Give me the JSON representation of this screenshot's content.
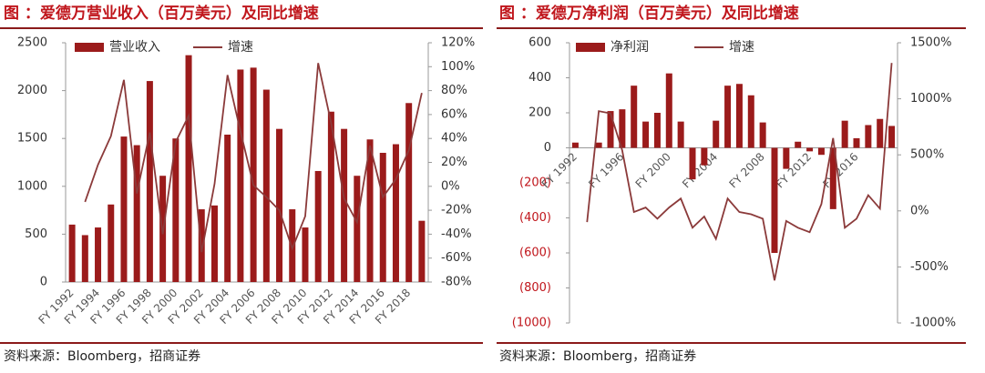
{
  "chart_data": [
    {
      "type": "bar_line",
      "title": "图 ：爱德万营业收入（百万美元）及同比增速",
      "note": "资料来源：Bloomberg，招商证券",
      "categories": [
        "FY 1992",
        null,
        "FY 1994",
        null,
        "FY 1996",
        null,
        "FY 1998",
        null,
        "FY 2000",
        null,
        "FY 2002",
        null,
        "FY 2004",
        null,
        "FY 2006",
        null,
        "FY 2008",
        null,
        "FY 2010",
        null,
        "FY 2012",
        null,
        "FY 2014",
        null,
        "FY 2016",
        null,
        "FY 2018",
        null
      ],
      "series": [
        {
          "name": "营业收入",
          "color": "#9b1b1b",
          "kind": "bar",
          "values": [
            600,
            490,
            570,
            810,
            1520,
            1430,
            2100,
            1110,
            1500,
            2370,
            760,
            800,
            1540,
            2220,
            2240,
            2010,
            1600,
            760,
            570,
            1160,
            1780,
            1600,
            1110,
            1490,
            1350,
            1440,
            1870,
            640
          ]
        },
        {
          "name": "增速",
          "color": "#8b3a3a",
          "kind": "line",
          "axis": "y2",
          "values": [
            null,
            -13,
            18,
            42,
            89,
            -6,
            45,
            -40,
            37,
            59,
            -55,
            2,
            93,
            46,
            1,
            -9,
            -20,
            -52,
            -25,
            103,
            53,
            -10,
            -30,
            34,
            -9,
            6,
            30,
            78
          ]
        }
      ],
      "ylim": [
        0,
        2500
      ],
      "yticks": [
        0,
        500,
        1000,
        1500,
        2000,
        2500
      ],
      "y2lim": [
        -80,
        120
      ],
      "y2ticks": [
        {
          "value": -80,
          "label": "-80%"
        },
        {
          "value": -60,
          "label": "-60%"
        },
        {
          "value": -40,
          "label": "-40%"
        },
        {
          "value": -20,
          "label": "-20%"
        },
        {
          "value": 0,
          "label": "0%"
        },
        {
          "value": 20,
          "label": "20%"
        },
        {
          "value": 40,
          "label": "40%"
        },
        {
          "value": 60,
          "label": "60%"
        },
        {
          "value": 80,
          "label": "80%"
        },
        {
          "value": 100,
          "label": "100%"
        },
        {
          "value": 120,
          "label": "120%"
        }
      ]
    },
    {
      "type": "bar_line",
      "title": "图 ：爱德万净利润（百万美元）及同比增速",
      "note": "资料来源：Bloomberg，招商证券",
      "categories": [
        "FY 1992",
        null,
        null,
        null,
        "FY 1996",
        null,
        null,
        null,
        "FY 2000",
        null,
        null,
        null,
        "FY 2004",
        null,
        null,
        null,
        "FY 2008",
        null,
        null,
        null,
        "FY 2012",
        null,
        null,
        null,
        "FY 2016",
        null,
        null,
        null
      ],
      "series": [
        {
          "name": "净利润",
          "color": "#9b1b1b",
          "kind": "bar",
          "values": [
            30,
            0,
            30,
            210,
            220,
            355,
            150,
            200,
            425,
            150,
            -180,
            -100,
            155,
            355,
            365,
            300,
            145,
            -600,
            -120,
            35,
            -20,
            -40,
            -350,
            155,
            55,
            130,
            165,
            125
          ]
        },
        {
          "name": "增速",
          "color": "#8b3a3a",
          "kind": "line",
          "axis": "y2",
          "values": [
            null,
            -100,
            890,
            870,
            540,
            -10,
            30,
            -70,
            30,
            110,
            -150,
            -50,
            -250,
            110,
            -10,
            -30,
            -70,
            -620,
            -90,
            -150,
            -190,
            60,
            650,
            -150,
            -70,
            140,
            20,
            1320
          ]
        }
      ],
      "ylim": [
        -1000,
        600
      ],
      "yticks": [
        {
          "value": -1000,
          "label": "(1000)"
        },
        {
          "value": -800,
          "label": "(800)"
        },
        {
          "value": -600,
          "label": "(600)"
        },
        {
          "value": -400,
          "label": "(400)"
        },
        {
          "value": -200,
          "label": "(200)"
        },
        0,
        200,
        400,
        600
      ],
      "y2lim": [
        -1000,
        1500
      ],
      "y2ticks": [
        {
          "value": -1000,
          "label": "-1000%"
        },
        {
          "value": -500,
          "label": "-500%"
        },
        {
          "value": 0,
          "label": "0%"
        },
        {
          "value": 500,
          "label": "500%"
        },
        {
          "value": 1000,
          "label": "1000%"
        },
        {
          "value": 1500,
          "label": "1500%"
        }
      ]
    }
  ]
}
